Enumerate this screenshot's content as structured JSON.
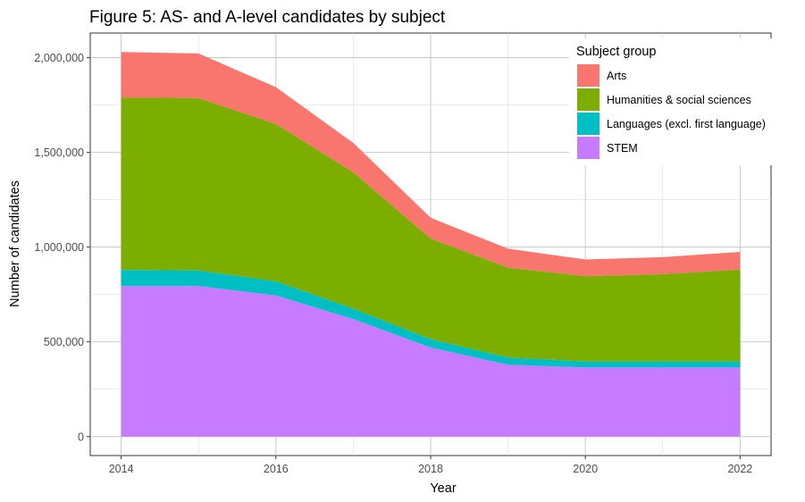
{
  "chart_data": {
    "type": "area",
    "stacked": true,
    "title": "Figure 5: AS- and A-level candidates by subject",
    "xlabel": "Year",
    "ylabel": "Number of candidates",
    "xlim": [
      2013.6,
      2022.4
    ],
    "ylim": [
      -100000,
      2130000
    ],
    "x_ticks": [
      2014,
      2016,
      2018,
      2020,
      2022
    ],
    "x_tick_labels": [
      "2014",
      "2016",
      "2018",
      "2020",
      "2022"
    ],
    "y_ticks": [
      0,
      500000,
      1000000,
      1500000,
      2000000
    ],
    "y_tick_labels": [
      "0",
      "500,000",
      "1,000,000",
      "1,500,000",
      "2,000,000"
    ],
    "grid": true,
    "legend": {
      "title": "Subject group",
      "placement": "top-right",
      "entries": [
        "Arts",
        "Humanities & social sciences",
        "Languages (excl. first language)",
        "STEM"
      ]
    },
    "x": [
      2014,
      2015,
      2016,
      2017,
      2018,
      2019,
      2020,
      2021,
      2022
    ],
    "series": [
      {
        "name": "STEM",
        "color": "#C77CFF",
        "values": [
          795000,
          795000,
          745000,
          620000,
          470000,
          380000,
          365000,
          365000,
          365000
        ]
      },
      {
        "name": "Languages (excl. first language)",
        "color": "#00BFC4",
        "values": [
          85000,
          82000,
          75000,
          55000,
          45000,
          37000,
          32000,
          32000,
          32000
        ]
      },
      {
        "name": "Humanities & social sciences",
        "color": "#7CAE00",
        "values": [
          910000,
          910000,
          830000,
          720000,
          530000,
          475000,
          450000,
          460000,
          485000
        ]
      },
      {
        "name": "Arts",
        "color": "#F8766D",
        "values": [
          240000,
          235000,
          195000,
          155000,
          110000,
          100000,
          88000,
          90000,
          93000
        ]
      }
    ]
  }
}
